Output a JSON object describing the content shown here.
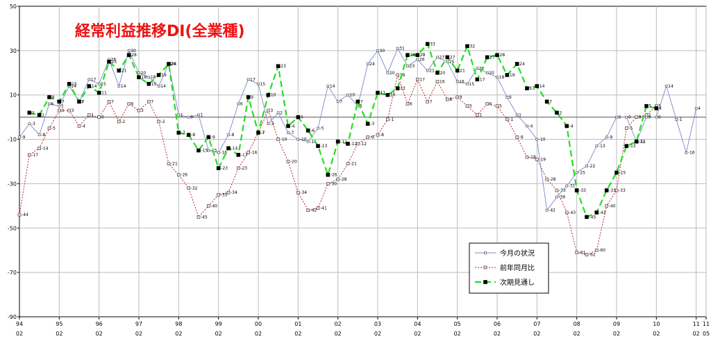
{
  "chart_data": {
    "type": "line",
    "title": "経常利益推移DI(全業種)",
    "colors": {
      "title": "#ee1111",
      "series_a": "#7788cc",
      "series_b": "#bb2222",
      "series_c": "#22dd22",
      "grid": "#bbbbbb",
      "zero": "#555555"
    },
    "ylim": [
      -90,
      50
    ],
    "yticks": [
      50,
      30,
      10,
      -10,
      -30,
      -50,
      -70,
      -90
    ],
    "grid": true,
    "legend_position": "bottom-right",
    "x_labels": [
      {
        "yr": "94",
        "mo": "02",
        "i": 0
      },
      {
        "yr": "95",
        "mo": "02",
        "i": 4
      },
      {
        "yr": "96",
        "mo": "02",
        "i": 8
      },
      {
        "yr": "97",
        "mo": "02",
        "i": 12
      },
      {
        "yr": "98",
        "mo": "02",
        "i": 16
      },
      {
        "yr": "99",
        "mo": "02",
        "i": 20
      },
      {
        "yr": "00",
        "mo": "02",
        "i": 24
      },
      {
        "yr": "01",
        "mo": "02",
        "i": 28
      },
      {
        "yr": "02",
        "mo": "02",
        "i": 32
      },
      {
        "yr": "03",
        "mo": "02",
        "i": 36
      },
      {
        "yr": "04",
        "mo": "02",
        "i": 40
      },
      {
        "yr": "05",
        "mo": "02",
        "i": 44
      },
      {
        "yr": "06",
        "mo": "02",
        "i": 48
      },
      {
        "yr": "07",
        "mo": "02",
        "i": 52
      },
      {
        "yr": "08",
        "mo": "02",
        "i": 56
      },
      {
        "yr": "09",
        "mo": "02",
        "i": 60
      },
      {
        "yr": "10",
        "mo": "02",
        "i": 64
      },
      {
        "yr": "11",
        "mo": "02",
        "i": 68
      },
      {
        "yr": "11",
        "mo": "05",
        "i": 69
      }
    ],
    "series": [
      {
        "name": "今月の状況",
        "style": "a",
        "values": [
          -9,
          -3,
          -8,
          6,
          5,
          14,
          7,
          17,
          15,
          26,
          14,
          30,
          20,
          18,
          14,
          24,
          1,
          0,
          1,
          -15,
          -16,
          -8,
          6,
          17,
          15,
          -3,
          2,
          -7,
          -10,
          -11,
          -5,
          14,
          7,
          10,
          5,
          24,
          30,
          20,
          31,
          23,
          26,
          21,
          27,
          25,
          16,
          15,
          22,
          20,
          18,
          9,
          1,
          -4,
          -10,
          -42,
          -36,
          -31,
          -25,
          -22,
          -13,
          -9,
          0,
          0,
          -11,
          0,
          0,
          14,
          -1,
          -16,
          4
        ],
        "offset": 0
      },
      {
        "name": "前年同月比",
        "style": "b",
        "values": [
          -44,
          -17,
          -14,
          -5,
          3,
          3,
          -4,
          1,
          0,
          7,
          -2,
          6,
          3,
          7,
          -2,
          -21,
          -26,
          -32,
          -45,
          -40,
          -35,
          -34,
          -23,
          -16,
          -7,
          3,
          -10,
          -20,
          -34,
          -42,
          -41,
          -30,
          -28,
          -21,
          -12,
          -9,
          -8,
          -1,
          19,
          6,
          17,
          7,
          16,
          8,
          9,
          5,
          1,
          6,
          5,
          -1,
          -9,
          -18,
          -19,
          -28,
          -33,
          -43,
          -61,
          -62,
          -60,
          -40,
          -33,
          -5,
          0,
          1,
          5
        ],
        "offset": 0
      },
      {
        "name": "次期見通し",
        "style": "c",
        "values": [
          2,
          1,
          9,
          7,
          15,
          7,
          14,
          11,
          25,
          21,
          28,
          18,
          15,
          19,
          24,
          -7,
          -8,
          -15,
          -9,
          -23,
          -14,
          -17,
          9,
          -7,
          10,
          23,
          -4,
          0,
          -6,
          -13,
          -26,
          -11,
          -12,
          7,
          -3,
          11,
          10,
          13,
          28,
          28,
          33,
          20,
          27,
          21,
          32,
          17,
          27,
          28,
          19,
          24,
          13,
          14,
          7,
          2,
          -4,
          -33,
          -45,
          -43,
          -33,
          -25,
          -13,
          -11,
          5,
          4
        ],
        "offset": 1
      }
    ]
  }
}
